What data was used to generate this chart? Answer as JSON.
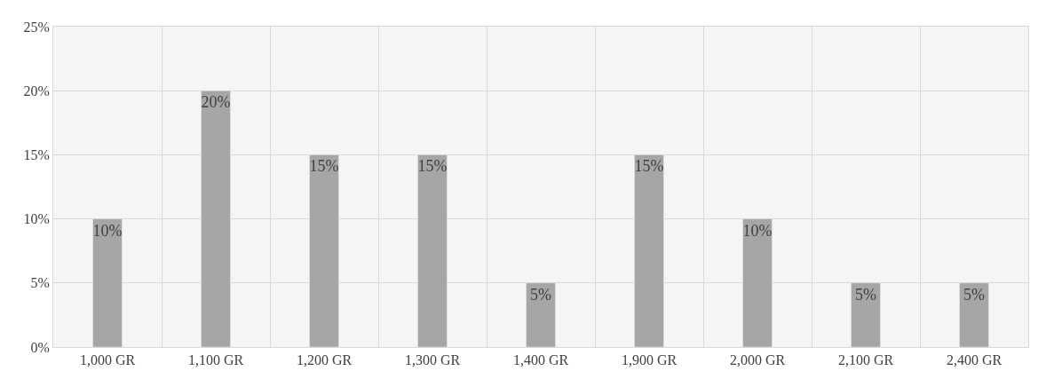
{
  "chart_data": {
    "type": "bar",
    "categories": [
      "1,000 GR",
      "1,100 GR",
      "1,200 GR",
      "1,300 GR",
      "1,400 GR",
      "1,900 GR",
      "2,000 GR",
      "2,100 GR",
      "2,400 GR"
    ],
    "values": [
      10,
      20,
      15,
      15,
      5,
      15,
      10,
      5,
      5
    ],
    "value_labels": [
      "10%",
      "20%",
      "15%",
      "15%",
      "5%",
      "15%",
      "10%",
      "5%",
      "5%"
    ],
    "color": "#a6a6a6",
    "ylim": [
      0,
      25
    ],
    "yticks": [
      {
        "value": 0,
        "label": "0%"
      },
      {
        "value": 5,
        "label": "5%"
      },
      {
        "value": 10,
        "label": "10%"
      },
      {
        "value": 15,
        "label": "15%"
      },
      {
        "value": 20,
        "label": "20%"
      },
      {
        "value": 25,
        "label": "25%"
      }
    ],
    "grid": true,
    "legend": false
  }
}
